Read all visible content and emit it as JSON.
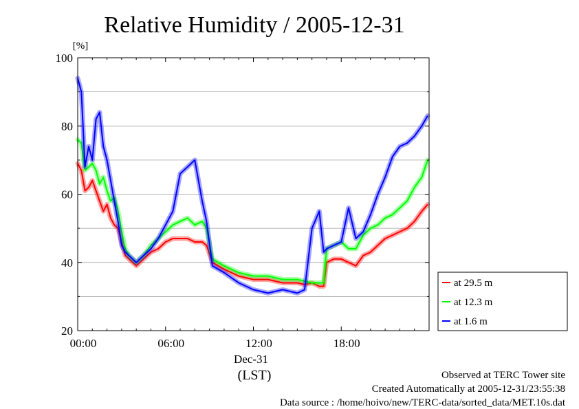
{
  "chart_data": {
    "type": "line",
    "title": "Relative Humidity / 2005-12-31",
    "ylabel_unit": "[%]",
    "ylim": [
      20,
      100
    ],
    "yticks": [
      "20",
      "40",
      "60",
      "80",
      "100"
    ],
    "xlim_hours": [
      0,
      24
    ],
    "xticks": [
      "00:00",
      "06:00",
      "12:00",
      "18:00"
    ],
    "date_label": "Dec-31",
    "xlabel": "(LST)",
    "grid": true,
    "legend_position": "right",
    "series": [
      {
        "name": "at 29.5 m",
        "color": "#ff0000",
        "x": [
          0,
          0.25,
          0.5,
          0.75,
          1,
          1.25,
          1.5,
          1.75,
          2,
          2.25,
          2.5,
          2.75,
          3,
          3.25,
          3.5,
          4,
          4.5,
          5,
          5.5,
          6,
          6.5,
          7,
          7.5,
          8,
          8.5,
          8.8,
          9.2,
          10,
          11,
          12,
          13,
          14,
          15,
          15.5,
          16,
          16.5,
          16.8,
          17,
          17.5,
          18,
          18.5,
          19,
          19.5,
          20,
          20.5,
          21,
          21.5,
          22,
          22.5,
          23,
          23.5,
          23.9
        ],
        "values": [
          69,
          67,
          61,
          62,
          64,
          61,
          58,
          55,
          57,
          53,
          51,
          50,
          46,
          42,
          41,
          39,
          41,
          43,
          44,
          46,
          47,
          47,
          47,
          46,
          46,
          45,
          40,
          38,
          36,
          35,
          35,
          34,
          34,
          33.5,
          34,
          33,
          33,
          40,
          41,
          41,
          40,
          39,
          42,
          43,
          45,
          47,
          48,
          49,
          50,
          52,
          55,
          57
        ]
      },
      {
        "name": "at 12.3 m",
        "color": "#00ff00",
        "x": [
          0,
          0.25,
          0.5,
          0.75,
          1,
          1.25,
          1.5,
          1.75,
          2,
          2.25,
          2.5,
          2.75,
          3,
          3.25,
          3.5,
          4,
          4.5,
          5,
          5.5,
          6,
          6.5,
          7,
          7.5,
          8,
          8.5,
          8.8,
          9.2,
          10,
          11,
          12,
          13,
          14,
          15,
          15.5,
          16,
          16.5,
          16.8,
          17,
          17.5,
          18,
          18.5,
          19,
          19.5,
          20,
          20.5,
          21,
          21.5,
          22,
          22.5,
          23,
          23.5,
          23.9
        ],
        "values": [
          76,
          75,
          67,
          68,
          69,
          67,
          63,
          65,
          61,
          58,
          59,
          55,
          49,
          44,
          42,
          40,
          42,
          45,
          47,
          49,
          51,
          52,
          53,
          51,
          52,
          50,
          41,
          39,
          37,
          36,
          36,
          35,
          35,
          34.5,
          34,
          34,
          34,
          44,
          45,
          46,
          44,
          44,
          48,
          50,
          51,
          53,
          54,
          56,
          58,
          62,
          65,
          70
        ]
      },
      {
        "name": "at 1.6 m",
        "color": "#0000ff",
        "x": [
          0,
          0.25,
          0.5,
          0.75,
          1,
          1.25,
          1.5,
          1.75,
          2,
          2.25,
          2.5,
          2.75,
          3,
          3.25,
          3.5,
          4,
          4.5,
          5,
          5.5,
          6,
          6.5,
          7,
          7.5,
          8,
          8.5,
          8.8,
          9.2,
          10,
          11,
          12,
          13,
          14,
          15,
          15.5,
          16,
          16.5,
          16.8,
          17,
          17.5,
          18,
          18.5,
          19,
          19.5,
          20,
          20.5,
          21,
          21.5,
          22,
          22.5,
          23,
          23.5,
          23.9
        ],
        "values": [
          94,
          90,
          68,
          74,
          70,
          82,
          84,
          74,
          70,
          64,
          58,
          52,
          45,
          43,
          42,
          40,
          42,
          44,
          47,
          51,
          55,
          66,
          68,
          70,
          58,
          52,
          39,
          37,
          34,
          32,
          31,
          32,
          31,
          32,
          50,
          55,
          43,
          44,
          45,
          46,
          56,
          47,
          49,
          54,
          60,
          65,
          71,
          74,
          75,
          77,
          80,
          83
        ]
      }
    ]
  },
  "footer": {
    "line1": "Observed at TERC Tower site",
    "line2": "Created Automatically at 2005-12-31/23:55:38",
    "line3": "Data source : /home/hoivo/new/TERC-data/sorted_data/MET.10s.dat"
  }
}
